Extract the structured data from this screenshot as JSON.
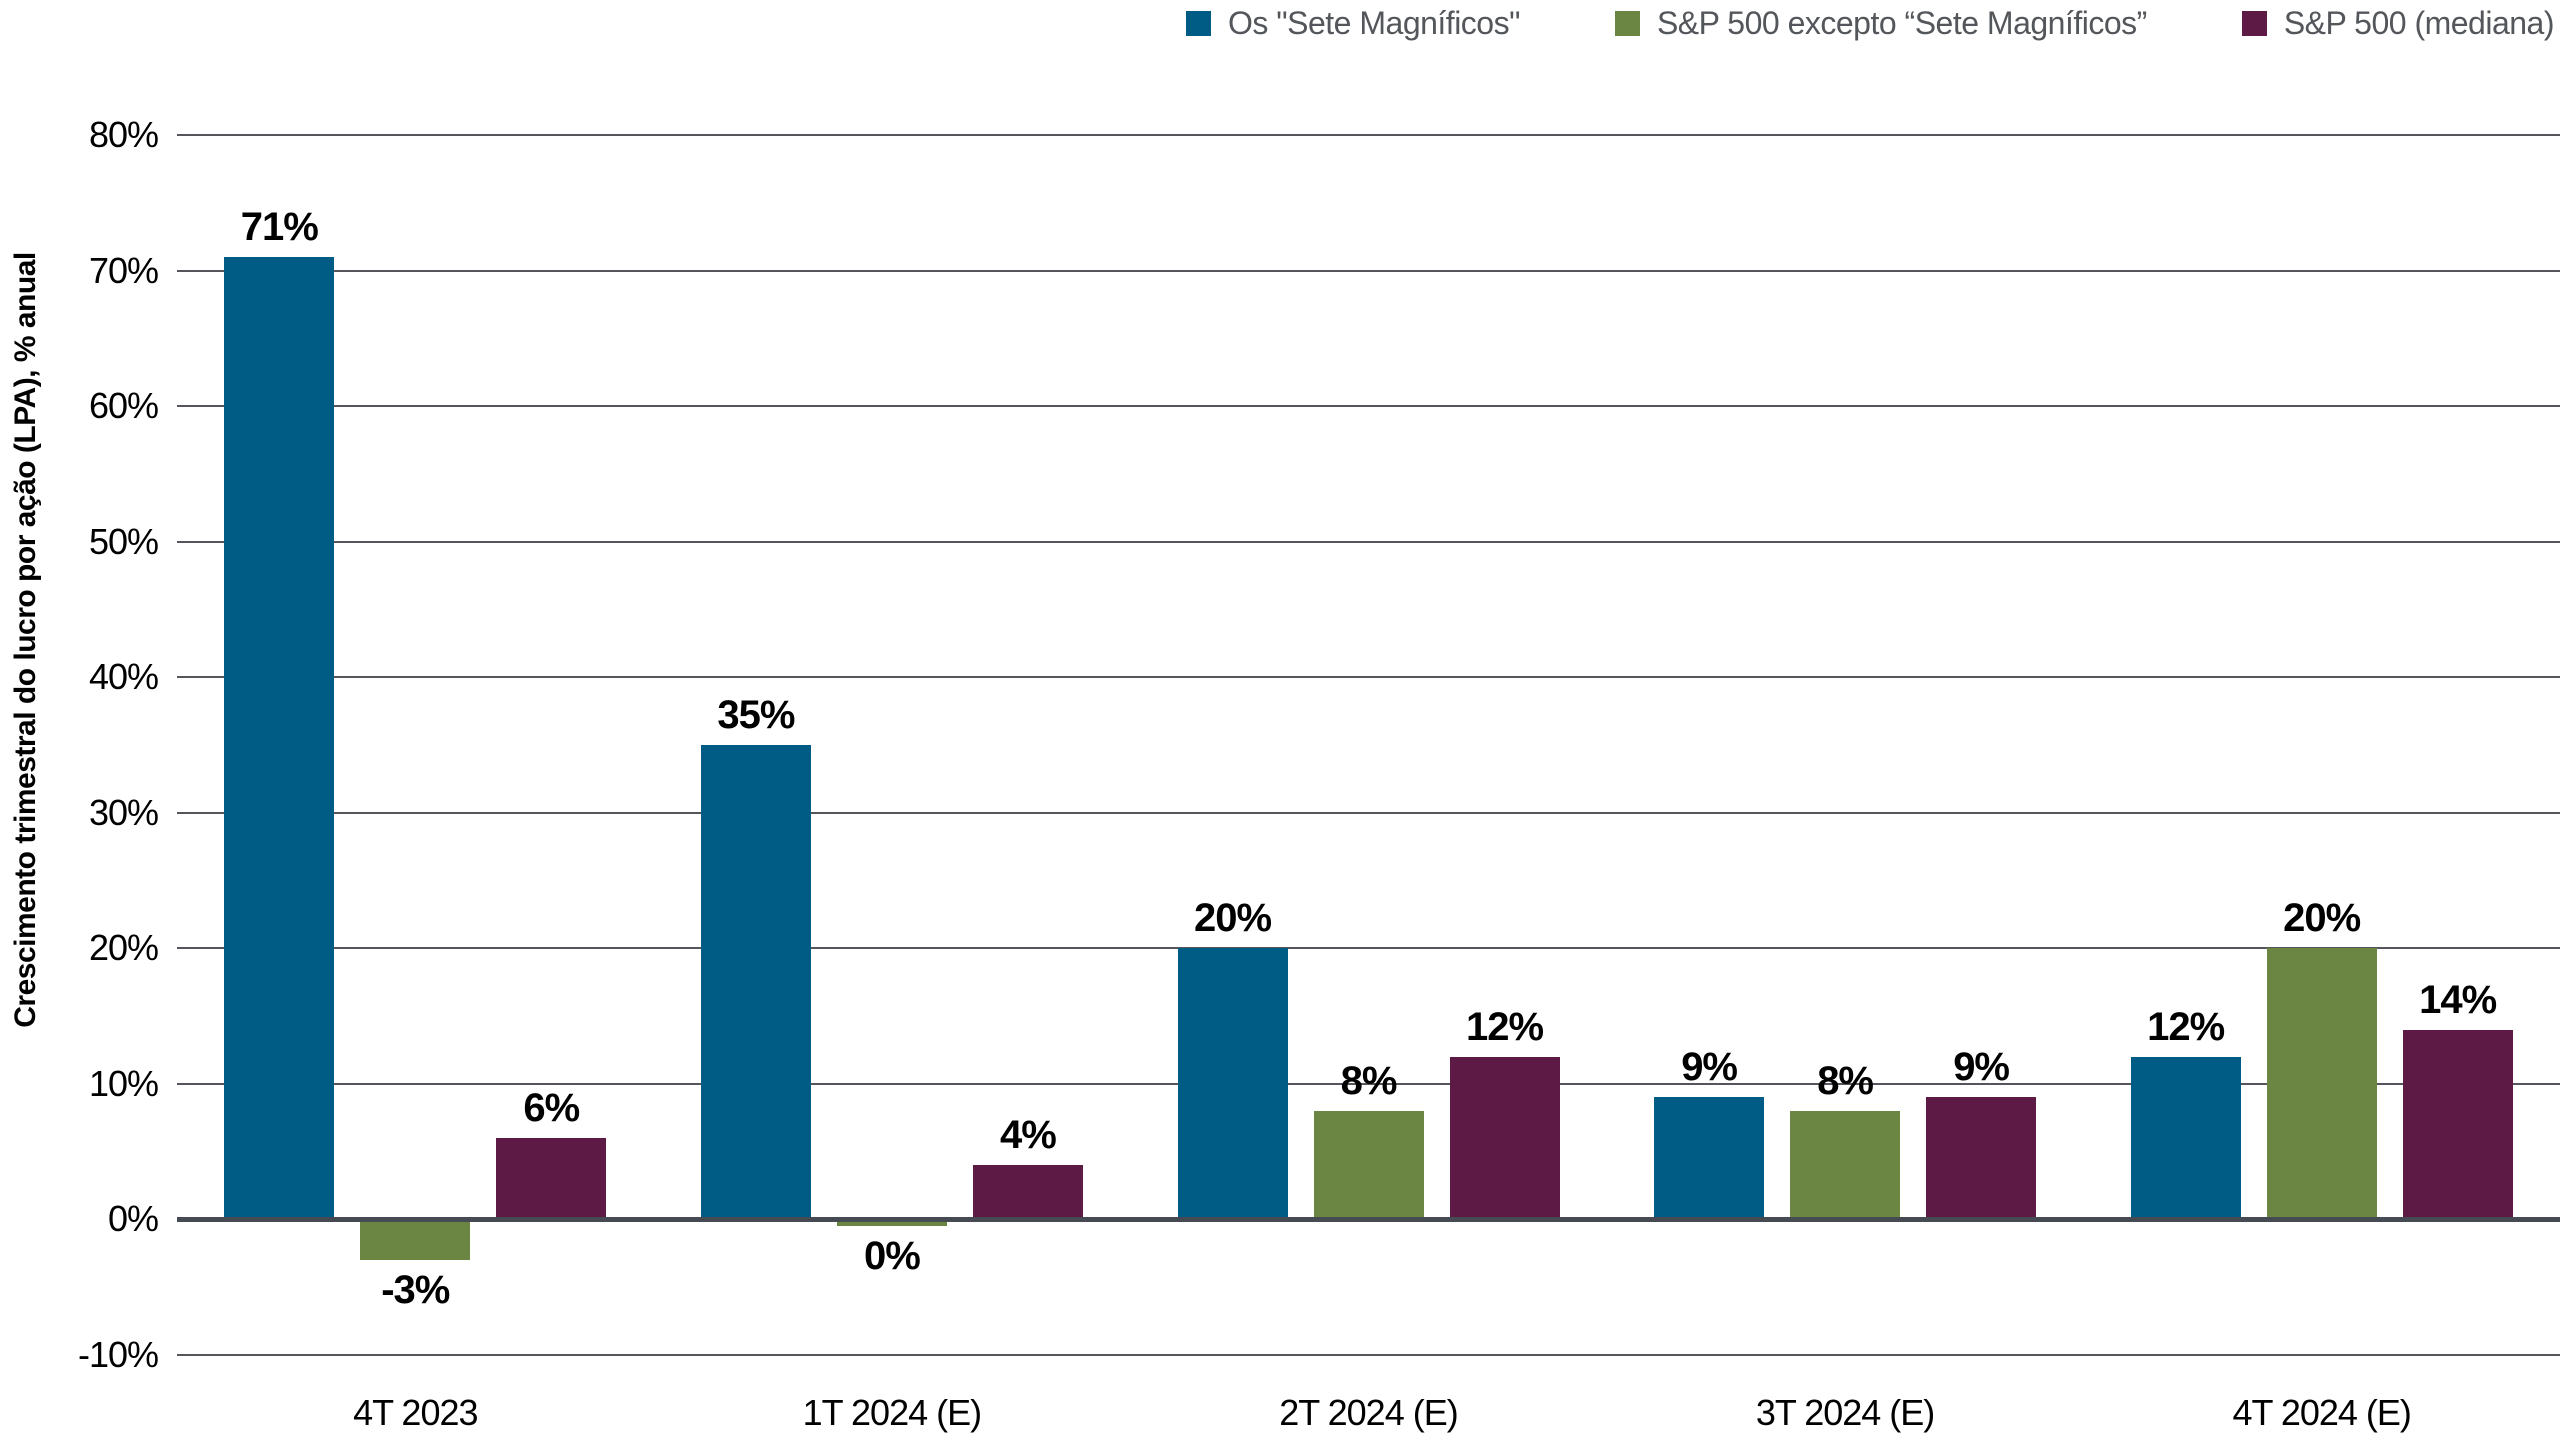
{
  "chart_data": {
    "type": "bar",
    "title": "",
    "categories": [
      "4T 2023",
      "1T 2024 (E)",
      "2T 2024 (E)",
      "3T 2024 (E)",
      "4T 2024 (E)"
    ],
    "series": [
      {
        "name": "Os \"Sete Magníficos\"",
        "color": "#005C84",
        "values": [
          71,
          35,
          20,
          9,
          12
        ],
        "labels": [
          "71%",
          "35%",
          "20%",
          "9%",
          "12%"
        ]
      },
      {
        "name": "S&P 500 excepto “Sete Magníficos”",
        "color": "#6A8642",
        "values": [
          -3,
          -0.5,
          8,
          8,
          20
        ],
        "labels": [
          "-3%",
          "0%",
          "8%",
          "8%",
          "20%"
        ]
      },
      {
        "name": "S&P 500 (mediana)",
        "color": "#5C1A45",
        "values": [
          6,
          4,
          12,
          9,
          14
        ],
        "labels": [
          "6%",
          "4%",
          "12%",
          "9%",
          "14%"
        ]
      }
    ],
    "xlabel": "",
    "ylabel": "Crescimento trimestral do lucro por ação (LPA), % anual",
    "ylim": [
      -10,
      80
    ],
    "yticks": [
      {
        "value": 80,
        "label": "80%"
      },
      {
        "value": 70,
        "label": "70%"
      },
      {
        "value": 60,
        "label": "60%"
      },
      {
        "value": 50,
        "label": "50%"
      },
      {
        "value": 40,
        "label": "40%"
      },
      {
        "value": 30,
        "label": "30%"
      },
      {
        "value": 20,
        "label": "20%"
      },
      {
        "value": 10,
        "label": "10%"
      },
      {
        "value": 0,
        "label": "0%"
      },
      {
        "value": -10,
        "label": "-10%"
      }
    ],
    "grid": "horizontal",
    "legend_position": "top-right",
    "value_labels": true
  },
  "styles": {
    "background": "#FFFFFF",
    "grid_color": "#54565B",
    "zero_line_color": "#464A52",
    "text_color": "#000000",
    "legend_text_color": "#53565A"
  }
}
